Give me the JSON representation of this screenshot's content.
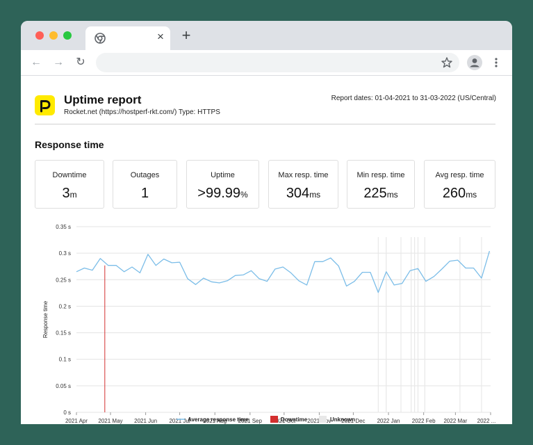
{
  "browser": {
    "tab_close": "×",
    "new_tab": "+",
    "back": "←",
    "forward": "→",
    "reload": "↻"
  },
  "report": {
    "title": "Uptime report",
    "subtitle": "Rocket.net (https://hostperf-rkt.com/) Type: HTTPS",
    "dates": "Report dates: 01-04-2021 to 31-03-2022 (US/Central)",
    "section_title": "Response time"
  },
  "stats": [
    {
      "label": "Downtime",
      "value": "3",
      "unit": "m"
    },
    {
      "label": "Outages",
      "value": "1",
      "unit": ""
    },
    {
      "label": "Uptime",
      "value": ">99.99",
      "unit": "%"
    },
    {
      "label": "Max resp. time",
      "value": "304",
      "unit": "ms"
    },
    {
      "label": "Min resp. time",
      "value": "225",
      "unit": "ms"
    },
    {
      "label": "Avg resp. time",
      "value": "260",
      "unit": "ms"
    }
  ],
  "colors": {
    "line": "#7bbde8",
    "downtime": "#d32f2f",
    "unknown": "#e8e8e8",
    "logo": "#ffea00"
  },
  "chart_data": {
    "type": "line",
    "ylabel": "Response time",
    "ylim": [
      0,
      0.35
    ],
    "y_ticks": [
      "0.35 s",
      "0.3 s",
      "0.25 s",
      "0.2 s",
      "0.15 s",
      "0.1 s",
      "0.05 s",
      "0 s"
    ],
    "x_ticks": [
      "2021 Apr",
      "2021 May",
      "2021 Jun",
      "2021 Jul",
      "2021 Aug",
      "2021 Sep",
      "2021 Oct",
      "2021 Nov",
      "2021 Dec",
      "2022 Jan",
      "2022 Feb",
      "2022 Mar",
      "2022 ..."
    ],
    "grid": true,
    "legend_position": "bottom",
    "legend": [
      "Average response time",
      "Downtime",
      "Unknown"
    ],
    "series": [
      {
        "name": "Average response time",
        "x": [
          "2021-04-01",
          "2021-04-08",
          "2021-04-15",
          "2021-04-22",
          "2021-04-29",
          "2021-05-06",
          "2021-05-13",
          "2021-05-20",
          "2021-05-27",
          "2021-06-03",
          "2021-06-10",
          "2021-06-17",
          "2021-06-24",
          "2021-07-01",
          "2021-07-08",
          "2021-07-15",
          "2021-07-22",
          "2021-07-29",
          "2021-08-05",
          "2021-08-12",
          "2021-08-19",
          "2021-08-26",
          "2021-09-02",
          "2021-09-09",
          "2021-09-16",
          "2021-09-23",
          "2021-09-30",
          "2021-10-07",
          "2021-10-14",
          "2021-10-21",
          "2021-10-28",
          "2021-11-04",
          "2021-11-11",
          "2021-11-18",
          "2021-11-25",
          "2021-12-02",
          "2021-12-09",
          "2021-12-16",
          "2021-12-23",
          "2021-12-30",
          "2022-01-06",
          "2022-01-13",
          "2022-01-20",
          "2022-01-27",
          "2022-02-03",
          "2022-02-10",
          "2022-02-17",
          "2022-02-24",
          "2022-03-03",
          "2022-03-10",
          "2022-03-17",
          "2022-03-24",
          "2022-03-31"
        ],
        "values": [
          0.265,
          0.272,
          0.268,
          0.29,
          0.277,
          0.277,
          0.265,
          0.274,
          0.263,
          0.298,
          0.277,
          0.289,
          0.282,
          0.283,
          0.252,
          0.241,
          0.253,
          0.246,
          0.244,
          0.248,
          0.258,
          0.259,
          0.267,
          0.252,
          0.247,
          0.27,
          0.274,
          0.263,
          0.248,
          0.24,
          0.284,
          0.284,
          0.291,
          0.276,
          0.238,
          0.247,
          0.264,
          0.264,
          0.226,
          0.265,
          0.24,
          0.243,
          0.267,
          0.271,
          0.247,
          0.256,
          0.27,
          0.285,
          0.287,
          0.272,
          0.272,
          0.253,
          0.304
        ]
      }
    ],
    "downtime_dates": [
      "2021-04-26"
    ],
    "unknown_dates": [
      "2021-12-23",
      "2021-12-30",
      "2022-01-12",
      "2022-01-21",
      "2022-01-24",
      "2022-01-27",
      "2022-02-02",
      "2022-03-05",
      "2022-03-24"
    ]
  }
}
